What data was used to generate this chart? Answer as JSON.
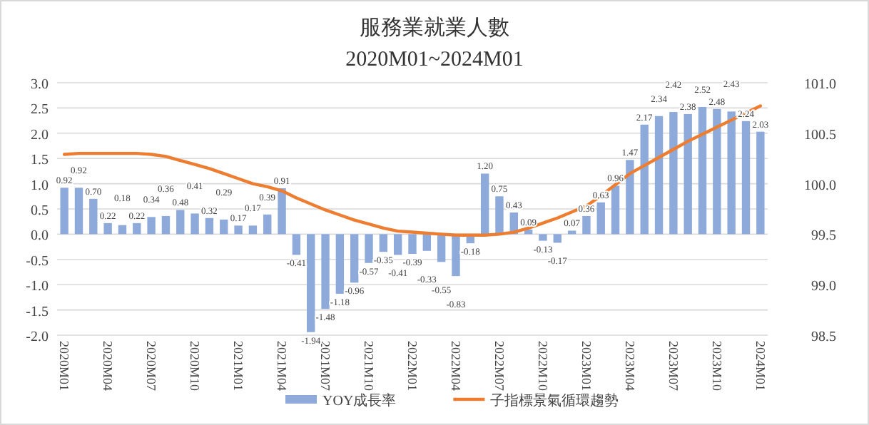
{
  "chart_data": {
    "type": "bar",
    "title": "服務業就業人數",
    "subtitle": "2020M01~2024M01",
    "categories": [
      "2020M01",
      null,
      null,
      "2020M04",
      null,
      null,
      "2020M07",
      null,
      null,
      "2020M10",
      null,
      null,
      "2021M01",
      null,
      null,
      "2021M04",
      null,
      null,
      "2021M07",
      null,
      null,
      "2021M10",
      null,
      null,
      "2022M01",
      null,
      null,
      "2022M04",
      null,
      null,
      "2022M07",
      null,
      null,
      "2022M10",
      null,
      null,
      "2023M01",
      null,
      null,
      "2023M04",
      null,
      null,
      "2023M07",
      null,
      null,
      "2023M10",
      null,
      null,
      "2024M01"
    ],
    "series": [
      {
        "name": "YOY成長率",
        "color": "#8eaadb",
        "values": [
          0.92,
          0.92,
          0.7,
          0.22,
          0.18,
          0.22,
          0.34,
          0.36,
          0.48,
          0.41,
          0.32,
          0.29,
          0.17,
          0.17,
          0.39,
          0.91,
          -0.41,
          -1.94,
          -1.48,
          -1.18,
          -0.96,
          -0.57,
          -0.35,
          -0.41,
          -0.39,
          -0.33,
          -0.55,
          -0.83,
          -0.18,
          1.2,
          0.75,
          0.43,
          0.09,
          -0.13,
          -0.17,
          0.07,
          0.36,
          0.63,
          0.96,
          1.47,
          2.17,
          2.34,
          2.42,
          2.38,
          2.52,
          2.48,
          2.43,
          2.24,
          2.03
        ],
        "value_labels": [
          "0.92",
          "0.92",
          "0.70",
          "0.22",
          "0.18",
          "0.22",
          "0.34",
          "0.36",
          "0.48",
          "0.41",
          "0.32",
          "0.29",
          "0.17",
          "0.17",
          "0.39",
          "0.91",
          "-0.41",
          "-1.94",
          "-1.48",
          "-1.18",
          "-0.96",
          "-0.57",
          "-0.35",
          "-0.41",
          "-0.39",
          "-0.33",
          "-0.55",
          "-0.83",
          "-0.18",
          "1.20",
          "0.75",
          "0.43",
          "0.09",
          "-0.13",
          "-0.17",
          "0.07",
          "0.36",
          "0.63",
          "0.96",
          "1.47",
          "2.17",
          "2.34",
          "2.42",
          "2.38",
          "2.52",
          "2.48",
          "2.43",
          "2.24",
          "2.03"
        ]
      },
      {
        "name": "子指標景氣循環趨勢",
        "type": "line",
        "axis": "y2",
        "color": "#ed7d31",
        "values": [
          100.29,
          100.3,
          100.3,
          100.3,
          100.3,
          100.3,
          100.29,
          100.27,
          100.23,
          100.19,
          100.15,
          100.1,
          100.05,
          100.0,
          99.97,
          99.93,
          99.86,
          99.8,
          99.74,
          99.69,
          99.64,
          99.6,
          99.56,
          99.53,
          99.52,
          99.51,
          99.5,
          99.49,
          99.49,
          99.49,
          99.5,
          99.52,
          99.56,
          99.61,
          99.66,
          99.72,
          99.78,
          99.88,
          99.99,
          100.1,
          100.18,
          100.26,
          100.34,
          100.42,
          100.49,
          100.56,
          100.63,
          100.7,
          100.77
        ]
      }
    ],
    "ylim": [
      -2,
      3
    ],
    "yticks": [
      {
        "value": -2,
        "label": "-2.0"
      },
      {
        "value": -1.5,
        "label": "-1.5"
      },
      {
        "value": -1,
        "label": "-1.0"
      },
      {
        "value": -0.5,
        "label": "-0.5"
      },
      {
        "value": 0,
        "label": "0.0"
      },
      {
        "value": 0.5,
        "label": "0.5"
      },
      {
        "value": 1,
        "label": "1.0"
      },
      {
        "value": 1.5,
        "label": "1.5"
      },
      {
        "value": 2,
        "label": "2.0"
      },
      {
        "value": 2.5,
        "label": "2.5"
      },
      {
        "value": 3,
        "label": "3.0"
      }
    ],
    "y2lim": [
      98.5,
      101
    ],
    "y2ticks": [
      {
        "value": 98.5,
        "label": "98.5"
      },
      {
        "value": 99,
        "label": "99.0"
      },
      {
        "value": 99.5,
        "label": "99.5"
      },
      {
        "value": 100,
        "label": "100.0"
      },
      {
        "value": 100.5,
        "label": "100.5"
      },
      {
        "value": 101,
        "label": "101.0"
      }
    ],
    "grid": "y",
    "legend": "bottom"
  }
}
